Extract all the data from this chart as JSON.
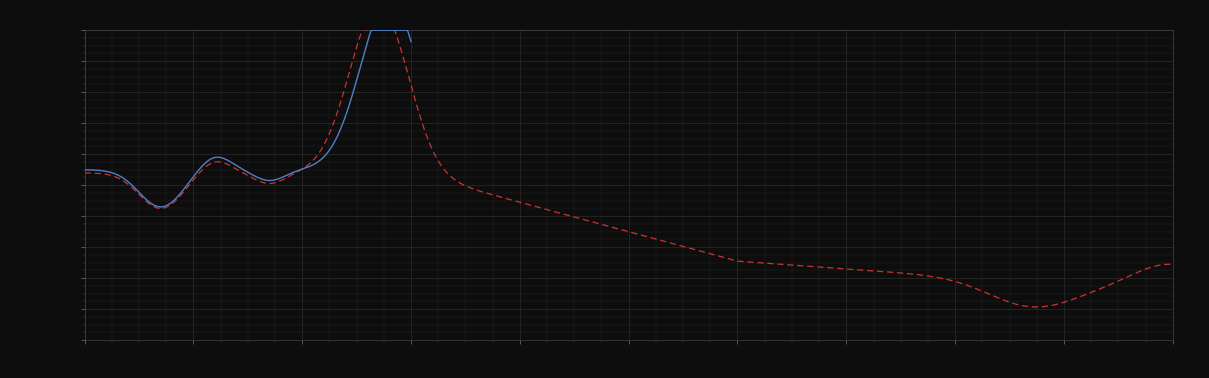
{
  "background_color": "#0d0d0d",
  "axes_bg_color": "#0d0d0d",
  "grid_color": "#2e2e2e",
  "line1_color": "#5080c8",
  "line2_color": "#cc3333",
  "fig_width": 12.09,
  "fig_height": 3.78,
  "xlim": [
    0,
    100
  ],
  "ylim": [
    0,
    10
  ],
  "dpi": 100
}
